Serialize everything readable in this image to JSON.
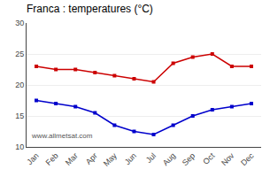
{
  "chart_data": {
    "type": "line",
    "title": "Franca : temperatures (°C)",
    "categories": [
      "Jan",
      "Feb",
      "Mar",
      "Apr",
      "May",
      "Jun",
      "Jul",
      "Aug",
      "Sep",
      "Oct",
      "Nov",
      "Dec"
    ],
    "series": [
      {
        "color": "#cc0000",
        "values": [
          23.0,
          22.5,
          22.5,
          22.0,
          21.5,
          21.0,
          20.5,
          23.5,
          24.5,
          25.0,
          23.0,
          23.0
        ]
      },
      {
        "color": "#0000cc",
        "values": [
          17.5,
          17.0,
          16.5,
          15.5,
          13.5,
          12.5,
          12.0,
          13.5,
          15.0,
          16.0,
          16.5,
          17.0
        ]
      }
    ],
    "ylim": [
      10,
      30
    ],
    "yticks": [
      10,
      15,
      20,
      25,
      30
    ],
    "grid": true,
    "marker": "square",
    "annotations": [
      "www.allmetsat.com"
    ]
  }
}
